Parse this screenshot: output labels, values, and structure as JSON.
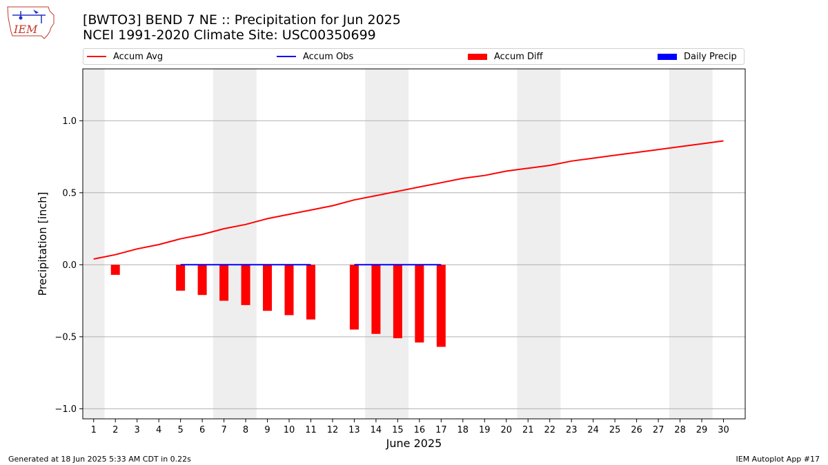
{
  "header": {
    "title_line1": "[BWTO3] BEND 7 NE :: Precipitation for Jun 2025",
    "title_line2": "NCEI 1991-2020 Climate Site: USC00350699",
    "logo_text": "IEM"
  },
  "legend": [
    {
      "label": "Accum Avg",
      "kind": "line",
      "color": "#ff0000"
    },
    {
      "label": "Accum Obs",
      "kind": "line",
      "color": "#0000ff"
    },
    {
      "label": "Accum Diff",
      "kind": "box",
      "color": "#ff0000"
    },
    {
      "label": "Daily Precip",
      "kind": "box",
      "color": "#0000ff"
    }
  ],
  "footer": {
    "generated": "Generated at 18 Jun 2025 5:33 AM CDT in 0.22s",
    "app": "IEM Autoplot App #17"
  },
  "chart_data": {
    "type": "bar",
    "xlabel": "June 2025",
    "ylabel": "Precipitation [inch]",
    "xlim": [
      0.5,
      31.0
    ],
    "ylim": [
      -1.07,
      1.36
    ],
    "x_ticks": [
      1,
      2,
      3,
      4,
      5,
      6,
      7,
      8,
      9,
      10,
      11,
      12,
      13,
      14,
      15,
      16,
      17,
      18,
      19,
      20,
      21,
      22,
      23,
      24,
      25,
      26,
      27,
      28,
      29,
      30
    ],
    "y_ticks": [
      -1.0,
      -0.5,
      0.0,
      0.5,
      1.0
    ],
    "y_tick_labels": [
      "−1.0",
      "−0.5",
      "0.0",
      "0.5",
      "1.0"
    ],
    "grid": "horizontal",
    "weekend_shading": [
      [
        0.5,
        1.5
      ],
      [
        6.5,
        8.5
      ],
      [
        13.5,
        15.5
      ],
      [
        20.5,
        22.5
      ],
      [
        27.5,
        29.5
      ]
    ],
    "shading_color": "#eeeeee",
    "series": [
      {
        "name": "Accum Avg",
        "kind": "line",
        "color": "#ff0000",
        "x": [
          1,
          2,
          3,
          4,
          5,
          6,
          7,
          8,
          9,
          10,
          11,
          12,
          13,
          14,
          15,
          16,
          17,
          18,
          19,
          20,
          21,
          22,
          23,
          24,
          25,
          26,
          27,
          28,
          29,
          30
        ],
        "values": [
          0.04,
          0.07,
          0.11,
          0.14,
          0.18,
          0.21,
          0.25,
          0.28,
          0.32,
          0.35,
          0.38,
          0.41,
          0.45,
          0.48,
          0.51,
          0.54,
          0.57,
          0.6,
          0.62,
          0.65,
          0.67,
          0.69,
          0.72,
          0.74,
          0.76,
          0.78,
          0.8,
          0.82,
          0.84,
          0.86
        ]
      },
      {
        "name": "Accum Obs",
        "kind": "line",
        "color": "#0000ff",
        "segments": [
          {
            "x": [
              5,
              6,
              7,
              8,
              9,
              10,
              11
            ],
            "values": [
              0,
              0,
              0,
              0,
              0,
              0,
              0
            ]
          },
          {
            "x": [
              13,
              14,
              15,
              16,
              17
            ],
            "values": [
              0,
              0,
              0,
              0,
              0
            ]
          }
        ]
      },
      {
        "name": "Accum Diff",
        "kind": "bar",
        "color": "#ff0000",
        "x": [
          2,
          5,
          6,
          7,
          8,
          9,
          10,
          11,
          13,
          14,
          15,
          16,
          17
        ],
        "values": [
          -0.07,
          -0.18,
          -0.21,
          -0.25,
          -0.28,
          -0.32,
          -0.35,
          -0.38,
          -0.45,
          -0.48,
          -0.51,
          -0.54,
          -0.57
        ]
      },
      {
        "name": "Daily Precip",
        "kind": "bar",
        "color": "#0000ff",
        "x": [],
        "values": []
      }
    ]
  }
}
